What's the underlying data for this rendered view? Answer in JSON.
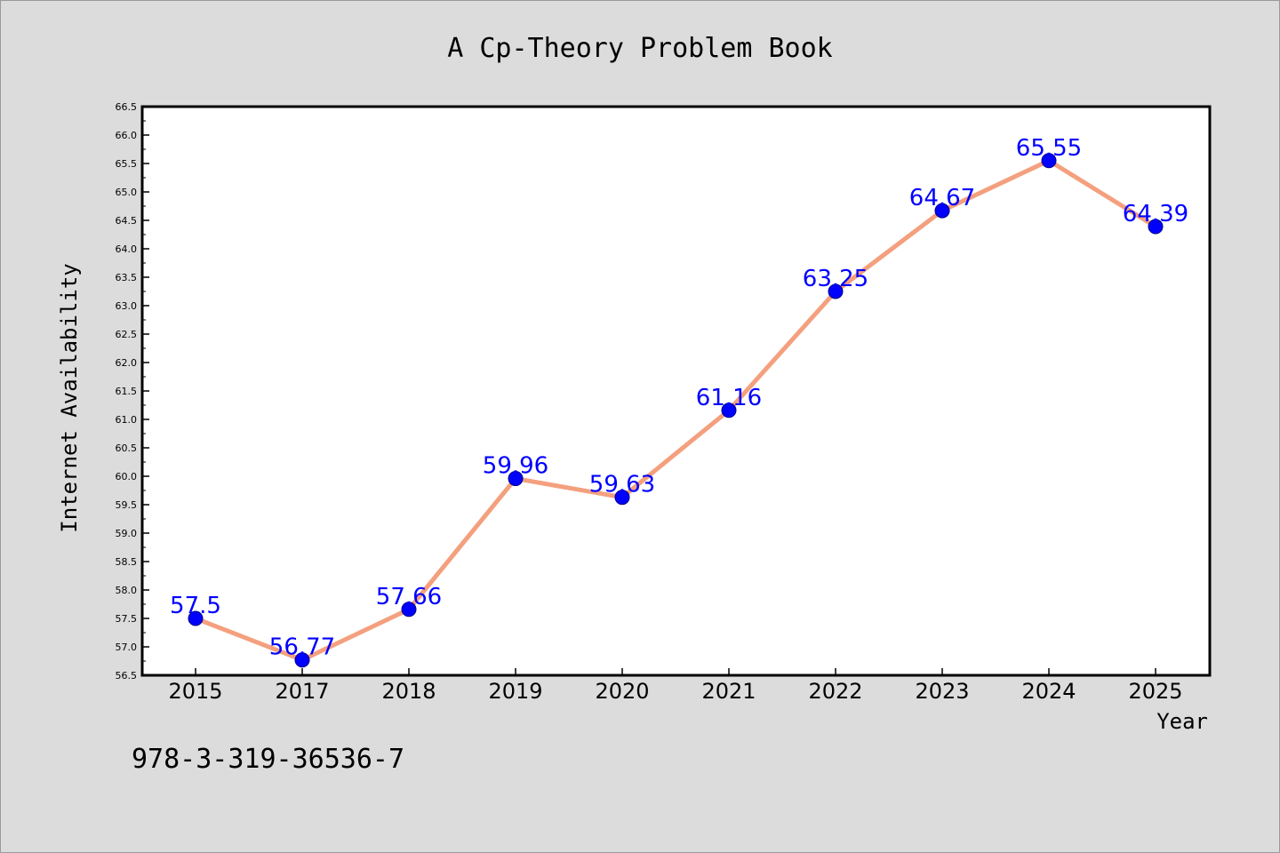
{
  "chart_data": {
    "type": "line",
    "title": "A Cp-Theory Problem Book",
    "xlabel": "Year",
    "ylabel": "Internet Availability",
    "categories": [
      "2015",
      "2017",
      "2018",
      "2019",
      "2020",
      "2021",
      "2022",
      "2023",
      "2024",
      "2025"
    ],
    "values": [
      57.5,
      56.77,
      57.66,
      59.96,
      59.63,
      61.16,
      63.25,
      64.67,
      65.55,
      64.39
    ],
    "data_labels": [
      "57.5",
      "56.77",
      "57.66",
      "59.96",
      "59.63",
      "61.16",
      "63.25",
      "64.67",
      "65.55",
      "64.39"
    ],
    "ylim": [
      56.5,
      66.5
    ],
    "y_ticks": [
      "56.5",
      "57.0",
      "57.5",
      "58.0",
      "58.5",
      "59.0",
      "59.5",
      "60.0",
      "60.5",
      "61.0",
      "61.5",
      "62.0",
      "62.5",
      "63.0",
      "63.5",
      "64.0",
      "64.5",
      "65.0",
      "65.5",
      "66.0",
      "66.5"
    ],
    "grid": false,
    "line_color": "#f4a07e",
    "marker_color": "#0000ff",
    "label_color": "#0000ff"
  },
  "footer_text": "978-3-319-36536-7",
  "colors": {
    "background": "#dcdcdc",
    "plot_bg": "#ffffff",
    "axis": "#000000"
  }
}
